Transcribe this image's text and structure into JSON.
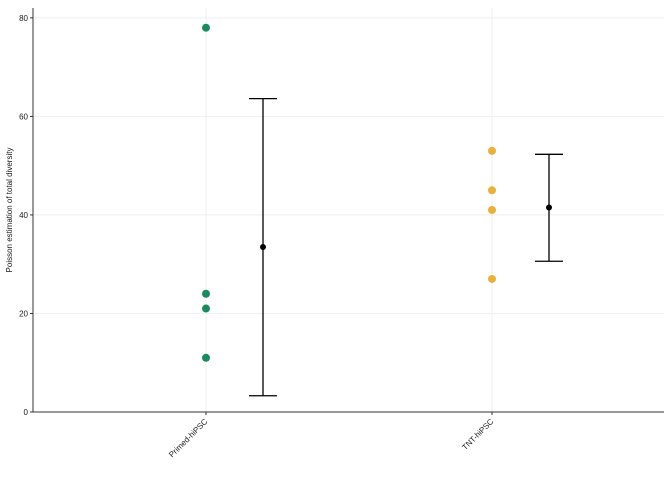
{
  "chart_data": {
    "type": "scatter",
    "title": "",
    "xlabel": "",
    "ylabel": "Poisson estimation of total diversity",
    "categories": [
      "Primed-hiPSC",
      "TNT-hiPSC"
    ],
    "ylim": [
      0,
      82
    ],
    "yticks": [
      0,
      20,
      40,
      60,
      80
    ],
    "grid": true,
    "series": [
      {
        "category": "Primed-hiPSC",
        "color": "#1b8a5f",
        "values": [
          78,
          24,
          21,
          11
        ]
      },
      {
        "category": "TNT-hiPSC",
        "color": "#e8b03d",
        "values": [
          53,
          45,
          41,
          27
        ]
      }
    ],
    "summary": [
      {
        "category": "Primed-hiPSC",
        "mean": 33.5,
        "lower": 3.3,
        "upper": 63.6
      },
      {
        "category": "TNT-hiPSC",
        "mean": 41.5,
        "lower": 30.6,
        "upper": 52.3
      }
    ],
    "summary_color": "#000000"
  }
}
